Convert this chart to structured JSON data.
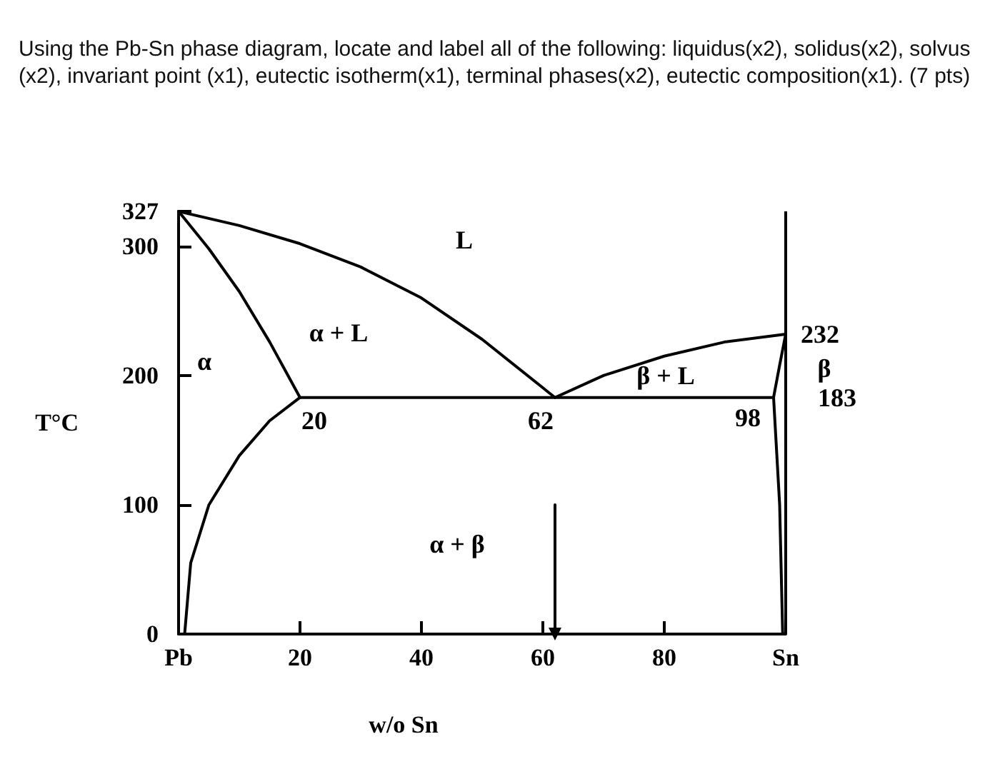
{
  "chart_data": {
    "type": "line",
    "title": "Using the Pb-Sn phase diagram, locate and label all of the following: liquidus(x2), solidus(x2), solvus(x2), invariant point (x1), eutectic isotherm(x1), terminal phases(x2), eutectic composition(x1). (7 pts)",
    "xlabel": "w/o Sn",
    "ylabel": "T°C",
    "xlim": [
      0,
      100
    ],
    "xticks": [
      {
        "value": 0,
        "label": "Pb"
      },
      20,
      40,
      60,
      80,
      {
        "value": 100,
        "label": "Sn"
      }
    ],
    "ylim": [
      0,
      327
    ],
    "yticks": [
      0,
      100,
      200,
      300,
      327
    ],
    "marker": "none",
    "line_style": "solid",
    "grid": false,
    "series": [
      {
        "color": "#000000",
        "x": [
          0,
          10,
          20,
          30,
          40,
          50,
          62
        ],
        "values": [
          327,
          316,
          302,
          284,
          260,
          228,
          183
        ]
      },
      {
        "color": "#000000",
        "x": [
          0,
          5,
          10,
          15,
          20
        ],
        "values": [
          327,
          298,
          265,
          226,
          183
        ]
      },
      {
        "color": "#000000",
        "x": [
          20,
          15,
          10,
          5,
          2,
          1
        ],
        "values": [
          183,
          165,
          138,
          100,
          55,
          0
        ]
      },
      {
        "color": "#000000",
        "x": [
          20,
          62,
          98
        ],
        "values": [
          183,
          183,
          183
        ]
      },
      {
        "color": "#000000",
        "x": [
          62,
          70,
          80,
          90,
          100
        ],
        "values": [
          183,
          200,
          215,
          226,
          232
        ]
      },
      {
        "color": "#000000",
        "x": [
          100,
          99,
          98,
          99,
          99.5
        ],
        "values": [
          232,
          208,
          183,
          100,
          0
        ]
      },
      {
        "color": "#000000",
        "x": [
          62,
          62
        ],
        "values": [
          100,
          0
        ],
        "marker": "triangle"
      }
    ],
    "ref_lines": [
      {
        "axis": "x",
        "value": 100,
        "color": "#000000"
      }
    ],
    "annotations": [
      "L",
      "α + L",
      "α",
      "β + L",
      "β",
      "α + β",
      {
        "text": "20",
        "x": 20,
        "y": 183
      },
      {
        "text": "62",
        "x": 62,
        "y": 183
      },
      {
        "text": "98",
        "x": 98,
        "y": 183
      },
      {
        "text": "183",
        "x": 100,
        "y": 183
      },
      {
        "text": "232",
        "x": 100,
        "y": 232
      }
    ]
  }
}
